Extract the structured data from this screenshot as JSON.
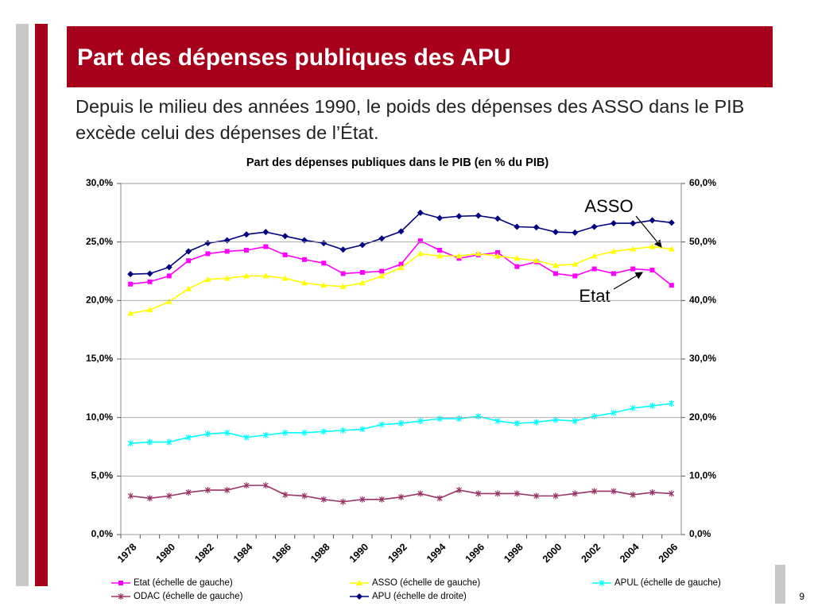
{
  "slide": {
    "title": "Part des dépenses publiques des APU",
    "text": "Depuis le milieu des années 1990, le poids des dépenses des ASSO dans le PIB excède celui des dépenses de l’État.",
    "page_number": "9"
  },
  "chart_data": {
    "type": "line",
    "title": "Part des dépenses publiques dans le PIB (en % du PIB)",
    "categories": [
      "1978",
      null,
      "1980",
      null,
      "1982",
      null,
      "1984",
      null,
      "1986",
      null,
      "1988",
      null,
      "1990",
      null,
      "1992",
      null,
      "1994",
      null,
      "1996",
      null,
      "1998",
      null,
      "2000",
      null,
      "2002",
      null,
      "2004",
      null,
      "2006"
    ],
    "series": [
      {
        "name": "Etat (échelle de gauche)",
        "color": "#ff00ff",
        "marker": "square",
        "values": [
          21.4,
          21.6,
          22.1,
          23.4,
          24.0,
          24.2,
          24.3,
          24.6,
          23.9,
          23.5,
          23.2,
          22.3,
          22.4,
          22.5,
          23.1,
          25.1,
          24.3,
          23.6,
          23.9,
          24.1,
          22.9,
          23.3,
          22.3,
          22.1,
          22.7,
          22.3,
          22.7,
          22.6,
          21.3
        ]
      },
      {
        "name": "ASSO (échelle de gauche)",
        "color": "#ffff00",
        "marker": "triangle",
        "values": [
          18.9,
          19.2,
          19.9,
          21.0,
          21.8,
          21.9,
          22.1,
          22.1,
          21.9,
          21.5,
          21.3,
          21.2,
          21.5,
          22.1,
          22.8,
          24.0,
          23.8,
          23.8,
          24.0,
          23.8,
          23.6,
          23.4,
          23.0,
          23.1,
          23.8,
          24.2,
          24.4,
          24.6,
          24.4
        ]
      },
      {
        "name": "APUL (échelle de gauche)",
        "color": "#00ffff",
        "marker": "star",
        "values": [
          7.8,
          7.9,
          7.9,
          8.3,
          8.6,
          8.7,
          8.3,
          8.5,
          8.7,
          8.7,
          8.8,
          8.9,
          9.0,
          9.4,
          9.5,
          9.7,
          9.9,
          9.9,
          10.1,
          9.7,
          9.5,
          9.6,
          9.8,
          9.7,
          10.1,
          10.4,
          10.8,
          11.0,
          11.2
        ]
      },
      {
        "name": "ODAC (échelle de gauche)",
        "color": "#993366",
        "marker": "star",
        "values": [
          3.3,
          3.1,
          3.3,
          3.6,
          3.8,
          3.8,
          4.2,
          4.2,
          3.4,
          3.3,
          3.0,
          2.8,
          3.0,
          3.0,
          3.2,
          3.5,
          3.1,
          3.8,
          3.5,
          3.5,
          3.5,
          3.3,
          3.3,
          3.5,
          3.7,
          3.7,
          3.4,
          3.6,
          3.5
        ]
      },
      {
        "name": "APU (échelle de droite)",
        "color": "#000080",
        "marker": "diamond",
        "axis": "y2",
        "values": [
          44.5,
          44.6,
          45.7,
          48.4,
          49.8,
          50.3,
          51.3,
          51.7,
          51.0,
          50.3,
          49.8,
          48.7,
          49.5,
          50.6,
          51.8,
          55.0,
          54.1,
          54.4,
          54.5,
          54.0,
          52.6,
          52.5,
          51.7,
          51.6,
          52.6,
          53.2,
          53.2,
          53.7,
          53.3
        ]
      }
    ],
    "ylim": [
      0,
      30
    ],
    "yticks": [
      {
        "value": 0,
        "label": "0,0%"
      },
      {
        "value": 5,
        "label": "5,0%"
      },
      {
        "value": 10,
        "label": "10,0%"
      },
      {
        "value": 15,
        "label": "15,0%"
      },
      {
        "value": 20,
        "label": "20,0%"
      },
      {
        "value": 25,
        "label": "25,0%"
      },
      {
        "value": 30,
        "label": "30,0%"
      }
    ],
    "y2lim": [
      0,
      60
    ],
    "y2ticks": [
      {
        "value": 0,
        "label": "0,0%"
      },
      {
        "value": 10,
        "label": "10,0%"
      },
      {
        "value": 20,
        "label": "20,0%"
      },
      {
        "value": 30,
        "label": "30,0%"
      },
      {
        "value": 40,
        "label": "40,0%"
      },
      {
        "value": 50,
        "label": "50,0%"
      },
      {
        "value": 60,
        "label": "60,0%"
      }
    ],
    "grid": true,
    "legend": "bottom",
    "annotations": [
      "ASSO",
      "Etat"
    ]
  }
}
